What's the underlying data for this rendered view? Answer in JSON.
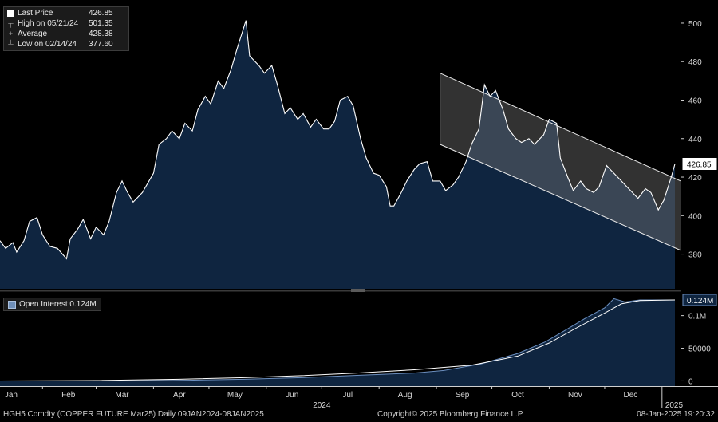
{
  "legend": {
    "last_price_label": "Last Price",
    "last_price_value": "426.85",
    "high_label": "High on 05/21/24",
    "high_value": "501.35",
    "average_label": "Average",
    "average_value": "428.38",
    "low_label": "Low on 02/14/24",
    "low_value": "377.60"
  },
  "oi_legend": {
    "label": "Open Interest 0.124M"
  },
  "footer": {
    "ticker": "HGH5 Comdty (COPPER FUTURE    Mar25)  Daily 09JAN2024-08JAN2025",
    "copyright": "Copyright© 2025 Bloomberg Finance L.P.",
    "timestamp": "08-Jan-2025 19:20:32"
  },
  "colors": {
    "background": "#000000",
    "area_fill": "#0f2540",
    "price_line": "#ffffff",
    "channel_fill": "#6e6e6e",
    "oi_fill": "#0f2540",
    "oi_line": "#6c8fbf"
  },
  "chart_data": [
    {
      "type": "area",
      "series": [
        {
          "name": "Last Price",
          "points": [
            [
              "2024-01-09",
              387
            ],
            [
              "2024-01-12",
              383
            ],
            [
              "2024-01-16",
              386
            ],
            [
              "2024-01-18",
              381
            ],
            [
              "2024-01-22",
              387
            ],
            [
              "2024-01-25",
              397
            ],
            [
              "2024-01-29",
              399
            ],
            [
              "2024-02-01",
              390
            ],
            [
              "2024-02-05",
              384
            ],
            [
              "2024-02-09",
              383
            ],
            [
              "2024-02-14",
              377.6
            ],
            [
              "2024-02-16",
              388
            ],
            [
              "2024-02-20",
              393
            ],
            [
              "2024-02-23",
              398
            ],
            [
              "2024-02-27",
              388
            ],
            [
              "2024-03-01",
              394
            ],
            [
              "2024-03-05",
              390
            ],
            [
              "2024-03-08",
              397
            ],
            [
              "2024-03-12",
              412
            ],
            [
              "2024-03-15",
              418
            ],
            [
              "2024-03-18",
              412
            ],
            [
              "2024-03-21",
              407
            ],
            [
              "2024-03-26",
              412
            ],
            [
              "2024-04-01",
              422
            ],
            [
              "2024-04-04",
              437
            ],
            [
              "2024-04-08",
              440
            ],
            [
              "2024-04-11",
              444
            ],
            [
              "2024-04-15",
              440
            ],
            [
              "2024-04-18",
              448
            ],
            [
              "2024-04-22",
              444
            ],
            [
              "2024-04-25",
              455
            ],
            [
              "2024-04-29",
              462
            ],
            [
              "2024-05-02",
              458
            ],
            [
              "2024-05-06",
              470
            ],
            [
              "2024-05-09",
              466
            ],
            [
              "2024-05-13",
              476
            ],
            [
              "2024-05-16",
              486
            ],
            [
              "2024-05-21",
              501.35
            ],
            [
              "2024-05-23",
              483
            ],
            [
              "2024-05-28",
              478
            ],
            [
              "2024-05-31",
              474
            ],
            [
              "2024-06-04",
              478
            ],
            [
              "2024-06-07",
              468
            ],
            [
              "2024-06-11",
              453
            ],
            [
              "2024-06-14",
              456
            ],
            [
              "2024-06-18",
              450
            ],
            [
              "2024-06-21",
              453
            ],
            [
              "2024-06-25",
              446
            ],
            [
              "2024-06-28",
              450
            ],
            [
              "2024-07-02",
              445
            ],
            [
              "2024-07-05",
              445
            ],
            [
              "2024-07-08",
              449
            ],
            [
              "2024-07-11",
              460
            ],
            [
              "2024-07-15",
              462
            ],
            [
              "2024-07-18",
              457
            ],
            [
              "2024-07-22",
              440
            ],
            [
              "2024-07-25",
              430
            ],
            [
              "2024-07-29",
              422
            ],
            [
              "2024-08-01",
              421
            ],
            [
              "2024-08-05",
              415
            ],
            [
              "2024-08-07",
              405
            ],
            [
              "2024-08-09",
              405
            ],
            [
              "2024-08-13",
              412
            ],
            [
              "2024-08-16",
              418
            ],
            [
              "2024-08-20",
              424
            ],
            [
              "2024-08-23",
              427
            ],
            [
              "2024-08-27",
              428
            ],
            [
              "2024-08-30",
              418
            ],
            [
              "2024-09-03",
              418
            ],
            [
              "2024-09-06",
              413
            ],
            [
              "2024-09-10",
              416
            ],
            [
              "2024-09-13",
              420
            ],
            [
              "2024-09-17",
              428
            ],
            [
              "2024-09-20",
              437
            ],
            [
              "2024-09-24",
              445
            ],
            [
              "2024-09-27",
              468
            ],
            [
              "2024-09-30",
              462
            ],
            [
              "2024-10-03",
              465
            ],
            [
              "2024-10-07",
              455
            ],
            [
              "2024-10-10",
              445
            ],
            [
              "2024-10-14",
              440
            ],
            [
              "2024-10-17",
              438
            ],
            [
              "2024-10-21",
              440
            ],
            [
              "2024-10-24",
              437
            ],
            [
              "2024-10-29",
              442
            ],
            [
              "2024-11-01",
              450
            ],
            [
              "2024-11-05",
              448
            ],
            [
              "2024-11-07",
              430
            ],
            [
              "2024-11-11",
              420
            ],
            [
              "2024-11-14",
              413
            ],
            [
              "2024-11-18",
              418
            ],
            [
              "2024-11-21",
              414
            ],
            [
              "2024-11-25",
              412
            ],
            [
              "2024-11-28",
              415
            ],
            [
              "2024-12-02",
              426
            ],
            [
              "2024-12-05",
              423
            ],
            [
              "2024-12-09",
              419
            ],
            [
              "2024-12-12",
              416
            ],
            [
              "2024-12-16",
              412
            ],
            [
              "2024-12-19",
              409
            ],
            [
              "2024-12-23",
              414
            ],
            [
              "2024-12-26",
              412
            ],
            [
              "2024-12-30",
              403
            ],
            [
              "2025-01-02",
              408
            ],
            [
              "2025-01-06",
              420
            ],
            [
              "2025-01-08",
              426.85
            ]
          ]
        }
      ],
      "channel": {
        "upper": [
          [
            "2024-09-03",
            474
          ],
          [
            "2025-01-11",
            418
          ]
        ],
        "lower": [
          [
            "2024-09-03",
            437
          ],
          [
            "2025-01-11",
            382
          ]
        ],
        "shade_from": "2024-09-03"
      },
      "ylim": [
        362,
        512
      ],
      "yticks": [
        380,
        400,
        420,
        440,
        460,
        480,
        500
      ],
      "last_price_tag": "426.85",
      "grid": false,
      "legend_position": "top-left"
    },
    {
      "type": "area",
      "series": [
        {
          "name": "Open Interest",
          "points": [
            [
              "2024-01-09",
              0
            ],
            [
              "2024-02-20",
              0
            ],
            [
              "2024-03-25",
              300
            ],
            [
              "2024-04-20",
              1000
            ],
            [
              "2024-05-20",
              2500
            ],
            [
              "2024-06-20",
              5000
            ],
            [
              "2024-07-20",
              8500
            ],
            [
              "2024-08-20",
              12000
            ],
            [
              "2024-09-05",
              16000
            ],
            [
              "2024-09-25",
              26000
            ],
            [
              "2024-10-15",
              42000
            ],
            [
              "2024-10-30",
              60000
            ],
            [
              "2024-11-10",
              78000
            ],
            [
              "2024-11-20",
              95000
            ],
            [
              "2024-12-01",
              112000
            ],
            [
              "2024-12-06",
              126000
            ],
            [
              "2024-12-12",
              121000
            ],
            [
              "2024-12-20",
              124000
            ],
            [
              "2025-01-08",
              124000
            ]
          ]
        },
        {
          "name": "",
          "points": [
            [
              "2024-01-09",
              0
            ],
            [
              "2024-03-01",
              500
            ],
            [
              "2024-04-15",
              2500
            ],
            [
              "2024-05-20",
              5000
            ],
            [
              "2024-06-20",
              8000
            ],
            [
              "2024-07-20",
              12000
            ],
            [
              "2024-08-20",
              17000
            ],
            [
              "2024-09-20",
              24000
            ],
            [
              "2024-10-15",
              38000
            ],
            [
              "2024-11-01",
              58000
            ],
            [
              "2024-11-15",
              80000
            ],
            [
              "2024-12-01",
              104000
            ],
            [
              "2024-12-10",
              118000
            ],
            [
              "2024-12-20",
              123000
            ],
            [
              "2025-01-08",
              124000
            ]
          ]
        }
      ],
      "ylim": [
        -8000,
        135000
      ],
      "yticks": [
        0,
        50000,
        100000
      ],
      "ytick_labels": [
        "0",
        "50000",
        "0.1M"
      ],
      "last_value_tag": "0.124M",
      "grid": false
    }
  ],
  "x_axis": {
    "months": [
      {
        "label": "Jan",
        "date": "2024-01-15"
      },
      {
        "label": "Feb",
        "date": "2024-02-15"
      },
      {
        "label": "Mar",
        "date": "2024-03-15"
      },
      {
        "label": "Apr",
        "date": "2024-04-15"
      },
      {
        "label": "May",
        "date": "2024-05-15"
      },
      {
        "label": "Jun",
        "date": "2024-06-15"
      },
      {
        "label": "Jul",
        "date": "2024-07-15"
      },
      {
        "label": "Aug",
        "date": "2024-08-15"
      },
      {
        "label": "Sep",
        "date": "2024-09-15"
      },
      {
        "label": "Oct",
        "date": "2024-10-15"
      },
      {
        "label": "Nov",
        "date": "2024-11-15"
      },
      {
        "label": "Dec",
        "date": "2024-12-15"
      }
    ],
    "year_labels": [
      {
        "label": "2024",
        "date": "2024-07-01"
      },
      {
        "label": "2025",
        "date": "2025-01-08"
      }
    ]
  }
}
